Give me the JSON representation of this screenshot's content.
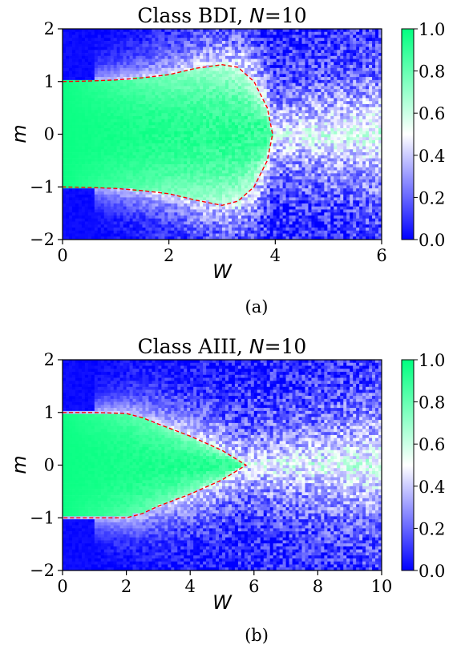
{
  "chart_data": [
    {
      "type": "heatmap",
      "title_text": "Class BDI, ",
      "title_var": "N",
      "title_value": "=10",
      "xlabel": "W",
      "ylabel": "m",
      "xlim": [
        0,
        6
      ],
      "ylim": [
        -2,
        2
      ],
      "xticks": [
        0,
        2,
        4,
        6
      ],
      "yticks": [
        -2,
        -1,
        0,
        1,
        2
      ],
      "colorbar_ticks": [
        "0.0",
        "0.2",
        "0.4",
        "0.6",
        "0.8",
        "1.0"
      ],
      "colorbar_range": [
        0,
        1
      ],
      "colormap": [
        "#0000ff",
        "#ffffff",
        "#00ff7f"
      ],
      "grid": false,
      "caption": "(a)",
      "boundary_color": "#ff0000",
      "boundary_style": "dashed",
      "boundary": [
        [
          0,
          1.0
        ],
        [
          0.5,
          1.01
        ],
        [
          1.0,
          1.03
        ],
        [
          1.5,
          1.07
        ],
        [
          2.0,
          1.13
        ],
        [
          2.5,
          1.25
        ],
        [
          3.0,
          1.32
        ],
        [
          3.3,
          1.27
        ],
        [
          3.6,
          1.0
        ],
        [
          3.85,
          0.5
        ],
        [
          3.95,
          0.0
        ],
        [
          3.85,
          -0.5
        ],
        [
          3.6,
          -1.0
        ],
        [
          3.3,
          -1.27
        ],
        [
          3.0,
          -1.35
        ],
        [
          2.5,
          -1.25
        ],
        [
          2.0,
          -1.13
        ],
        [
          1.5,
          -1.07
        ],
        [
          1.0,
          -1.03
        ],
        [
          0.5,
          -1.01
        ],
        [
          0,
          -1.0
        ]
      ]
    },
    {
      "type": "heatmap",
      "title_text": "Class AIII, ",
      "title_var": "N",
      "title_value": "=10",
      "xlabel": "W",
      "ylabel": "m",
      "xlim": [
        0,
        10
      ],
      "ylim": [
        -2,
        2
      ],
      "xticks": [
        0,
        2,
        4,
        6,
        8,
        10
      ],
      "yticks": [
        -2,
        -1,
        0,
        1,
        2
      ],
      "colorbar_ticks": [
        "0.0",
        "0.2",
        "0.4",
        "0.6",
        "0.8",
        "1.0"
      ],
      "colorbar_range": [
        0,
        1
      ],
      "colormap": [
        "#0000ff",
        "#ffffff",
        "#00ff7f"
      ],
      "grid": false,
      "caption": "(b)",
      "boundary_color": "#ff0000",
      "boundary_style": "dashed",
      "boundary": [
        [
          0,
          1.0
        ],
        [
          1.0,
          1.0
        ],
        [
          2.0,
          0.98
        ],
        [
          2.5,
          0.9
        ],
        [
          3.0,
          0.78
        ],
        [
          4.0,
          0.55
        ],
        [
          5.0,
          0.28
        ],
        [
          5.75,
          0.0
        ],
        [
          5.0,
          -0.28
        ],
        [
          4.0,
          -0.55
        ],
        [
          3.0,
          -0.78
        ],
        [
          2.5,
          -0.92
        ],
        [
          2.0,
          -1.0
        ],
        [
          1.0,
          -1.0
        ],
        [
          0,
          -1.0
        ]
      ]
    }
  ]
}
